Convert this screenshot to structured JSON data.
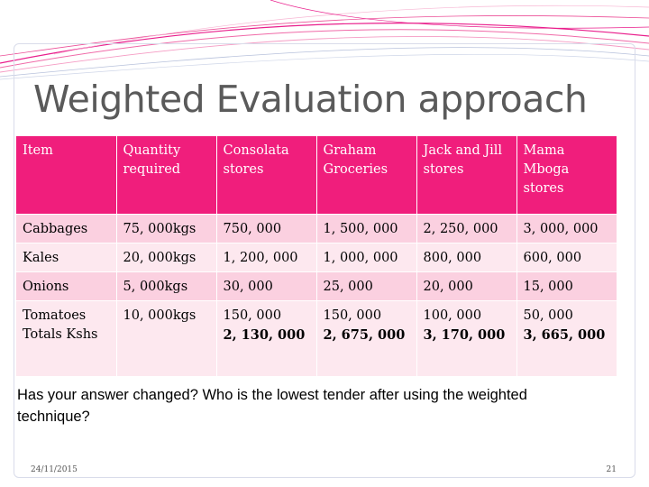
{
  "slide": {
    "title": "Weighted Evaluation approach",
    "question": "Has your answer changed? Who is the lowest tender after using the weighted technique?",
    "footer_date": "24/11/2015",
    "page_number": "21",
    "colors": {
      "header": "#f01e7c",
      "row_odd": "#fbd0e0",
      "row_even": "#fde8ef",
      "title": "#5a5a5a",
      "accent_curves": "#e91e8c"
    },
    "table": {
      "headers": [
        "Item",
        "Quantity required",
        "Consolata stores",
        "Graham Groceries",
        "Jack and Jill stores",
        "Mama Mboga stores"
      ],
      "rows": [
        [
          "Cabbages",
          "75, 000kgs",
          "750, 000",
          "1, 500, 000",
          "2, 250, 000",
          "3, 000, 000"
        ],
        [
          "Kales",
          "20, 000kgs",
          "1, 200, 000",
          "1, 000, 000",
          "800, 000",
          "600, 000"
        ],
        [
          "Onions",
          "5, 000kgs",
          "30, 000",
          "25, 000",
          "20, 000",
          "15, 000"
        ]
      ],
      "last_row": {
        "item": "Tomatoes",
        "total_label": "Totals Kshs",
        "quantity": "10, 000kgs",
        "values": [
          "150, 000",
          "150, 000",
          "100, 000",
          "50, 000"
        ],
        "totals": [
          "2, 130, 000",
          "2, 675, 000",
          "3, 170, 000",
          "3, 665, 000"
        ]
      }
    }
  }
}
